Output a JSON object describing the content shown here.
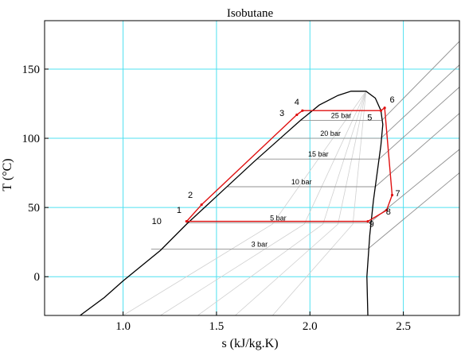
{
  "chart_data": {
    "type": "line",
    "title": "Isobutane",
    "xlabel": "s (kJ/kg.K)",
    "ylabel": "T (°C)",
    "xlim": [
      0.58,
      2.8
    ],
    "ylim": [
      -28,
      185
    ],
    "x_ticks": [
      1.0,
      1.5,
      2.0,
      2.5
    ],
    "x_tick_labels": [
      "1.0",
      "1.5",
      "2.0",
      "2.5"
    ],
    "y_ticks": [
      0,
      50,
      100,
      150
    ],
    "y_tick_labels": [
      "0",
      "50",
      "100",
      "150"
    ],
    "grid": true,
    "saturation_dome": [
      [
        0.77,
        -28
      ],
      [
        0.9,
        -15
      ],
      [
        1.0,
        -3
      ],
      [
        1.2,
        19
      ],
      [
        1.34,
        38
      ],
      [
        1.5,
        58
      ],
      [
        1.7,
        83
      ],
      [
        1.85,
        101
      ],
      [
        1.95,
        113
      ],
      [
        2.05,
        124
      ],
      [
        2.15,
        131
      ],
      [
        2.22,
        134
      ],
      [
        2.3,
        134
      ],
      [
        2.35,
        129
      ],
      [
        2.38,
        120
      ],
      [
        2.39,
        110
      ],
      [
        2.38,
        95
      ],
      [
        2.36,
        75
      ],
      [
        2.34,
        55
      ],
      [
        2.32,
        30
      ],
      [
        2.305,
        0
      ],
      [
        2.31,
        -28
      ]
    ],
    "isobars": [
      {
        "label": "3 bar",
        "points": [
          [
            1.15,
            20
          ],
          [
            2.31,
            20
          ],
          [
            2.8,
            75
          ]
        ]
      },
      {
        "label": "5 bar",
        "points": [
          [
            1.34,
            39
          ],
          [
            2.32,
            39
          ],
          [
            2.8,
            92
          ]
        ]
      },
      {
        "label": "10 bar",
        "points": [
          [
            1.56,
            65
          ],
          [
            2.35,
            65
          ],
          [
            2.8,
            118
          ]
        ]
      },
      {
        "label": "15 bar",
        "points": [
          [
            1.72,
            85
          ],
          [
            2.37,
            85
          ],
          [
            2.8,
            137
          ]
        ]
      },
      {
        "label": "20 bar",
        "points": [
          [
            1.84,
            100
          ],
          [
            2.38,
            100
          ],
          [
            2.8,
            153
          ]
        ]
      },
      {
        "label": "25 bar",
        "points": [
          [
            1.95,
            113
          ],
          [
            2.385,
            113
          ],
          [
            2.8,
            170
          ]
        ]
      }
    ],
    "quality_lines": [
      {
        "points": [
          [
            1.0,
            -28
          ],
          [
            1.8,
            38
          ],
          [
            2.3,
            134
          ]
        ]
      },
      {
        "points": [
          [
            1.2,
            -28
          ],
          [
            1.97,
            38
          ],
          [
            2.3,
            134
          ]
        ]
      },
      {
        "points": [
          [
            1.4,
            -28
          ],
          [
            2.07,
            38
          ],
          [
            2.3,
            134
          ]
        ]
      },
      {
        "points": [
          [
            1.6,
            -28
          ],
          [
            2.15,
            38
          ],
          [
            2.3,
            134
          ]
        ]
      },
      {
        "points": [
          [
            1.8,
            -28
          ],
          [
            2.23,
            38
          ],
          [
            2.3,
            134
          ]
        ]
      }
    ],
    "series": [
      {
        "color": "#e01010",
        "points": [
          [
            1.34,
            40
          ],
          [
            1.42,
            52
          ],
          [
            1.93,
            117
          ],
          [
            1.96,
            120
          ],
          [
            2.38,
            120
          ],
          [
            2.4,
            122
          ],
          [
            2.44,
            59
          ],
          [
            2.41,
            48
          ],
          [
            2.31,
            40
          ],
          [
            1.34,
            40
          ]
        ]
      }
    ],
    "state_labels": [
      {
        "text": "1",
        "x": 1.3,
        "y": 46
      },
      {
        "text": "2",
        "x": 1.36,
        "y": 57
      },
      {
        "text": "3",
        "x": 1.85,
        "y": 116
      },
      {
        "text": "4",
        "x": 1.93,
        "y": 124
      },
      {
        "text": "5",
        "x": 2.32,
        "y": 113
      },
      {
        "text": "6",
        "x": 2.44,
        "y": 126
      },
      {
        "text": "7",
        "x": 2.47,
        "y": 58
      },
      {
        "text": "8",
        "x": 2.42,
        "y": 45
      },
      {
        "text": "9",
        "x": 2.33,
        "y": 36
      },
      {
        "text": "10",
        "x": 1.18,
        "y": 38
      }
    ],
    "colors": {
      "grid": "#4fe0f0",
      "dome": "#000000",
      "isobar": "#909090",
      "quality": "#d0d0d0",
      "cycle": "#e01010",
      "axis": "#000000"
    }
  }
}
